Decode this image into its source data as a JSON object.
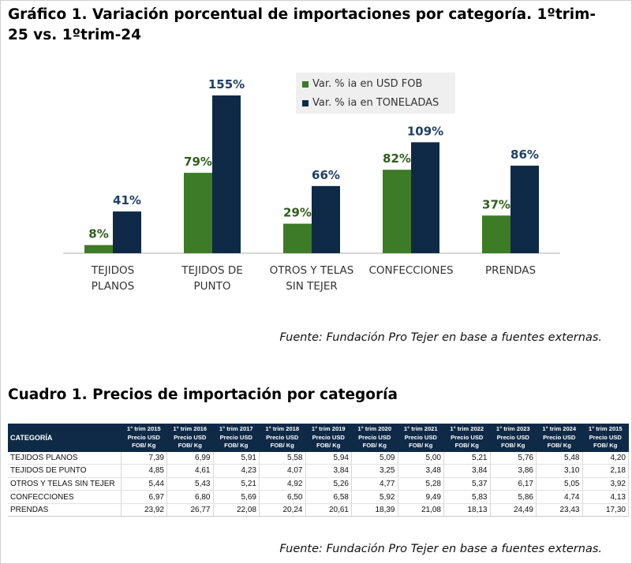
{
  "title": "Gráfico 1. Variación porcentual de importaciones por categoría. 1ºtrim-25 vs. 1ºtrim-24",
  "chart_data": {
    "type": "bar",
    "categories": [
      [
        "TEJIDOS",
        "PLANOS"
      ],
      [
        "TEJIDOS DE",
        "PUNTO"
      ],
      [
        "OTROS Y TELAS",
        "SIN TEJER"
      ],
      [
        "CONFECCIONES"
      ],
      [
        "PRENDAS"
      ]
    ],
    "series": [
      {
        "name": "Var. % ia en USD FOB",
        "values": [
          8,
          79,
          29,
          82,
          37
        ],
        "labels": [
          "8%",
          "79%",
          "29%",
          "82%",
          "37%"
        ],
        "color": "#3d7b26",
        "label_color": "#2f5e1d"
      },
      {
        "name": "Var. % ia en TONELADAS",
        "values": [
          41,
          155,
          66,
          109,
          86
        ],
        "labels": [
          "41%",
          "155%",
          "66%",
          "109%",
          "86%"
        ],
        "color": "#0f2a47",
        "label_color": "#1f3f66"
      }
    ],
    "ylim": [
      0,
      160
    ],
    "grid": false,
    "legend_position": "top-center"
  },
  "source_chart": "Fuente: Fundación Pro Tejer en base a fuentes externas.",
  "table": {
    "title": "Cuadro 1. Precios de importación por categoría",
    "header_category": "CATEGORÍA",
    "columns": [
      [
        "1° trim 2015",
        "Precio USD",
        "FOB/ Kg"
      ],
      [
        "1° trim 2016",
        "Precio USD",
        "FOB/ Kg"
      ],
      [
        "1° trim 2017",
        "Precio USD",
        "FOB/ Kg"
      ],
      [
        "1° trim 2018",
        "Precio USD",
        "FOB/ Kg"
      ],
      [
        "1° trim 2019",
        "Precio USD",
        "FOB/ Kg"
      ],
      [
        "1° trim 2020",
        "Precio USD",
        "FOB/ Kg"
      ],
      [
        "1° trim 2021",
        "Precio USD",
        "FOB/ Kg"
      ],
      [
        "1° trim 2022",
        "Precio USD",
        "FOB/ Kg"
      ],
      [
        "1° trim 2023",
        "Precio USD",
        "FOB/ Kg"
      ],
      [
        "1° trim 2024",
        "Precio USD",
        "FOB/ Kg"
      ],
      [
        "1° trim 2015",
        "Precio USD",
        "FOB/ Kg"
      ]
    ],
    "rows": [
      {
        "category": "TEJIDOS PLANOS",
        "values": [
          "7,39",
          "6,99",
          "5,91",
          "5,58",
          "5,94",
          "5,09",
          "5,00",
          "5,21",
          "5,76",
          "5,48",
          "4,20"
        ]
      },
      {
        "category": "TEJIDOS DE PUNTO",
        "values": [
          "4,85",
          "4,61",
          "4,23",
          "4,07",
          "3,84",
          "3,25",
          "3,48",
          "3,84",
          "3,86",
          "3,10",
          "2,18"
        ]
      },
      {
        "category": "OTROS Y TELAS SIN TEJER",
        "values": [
          "5,44",
          "5,43",
          "5,21",
          "4,92",
          "5,26",
          "4,77",
          "5,28",
          "5,37",
          "6,17",
          "5,05",
          "3,92"
        ]
      },
      {
        "category": "CONFECCIONES",
        "values": [
          "6,97",
          "6,80",
          "5,69",
          "6,50",
          "6,58",
          "5,92",
          "9,49",
          "5,83",
          "5,86",
          "4,74",
          "4,13"
        ]
      },
      {
        "category": "PRENDAS",
        "values": [
          "23,92",
          "26,77",
          "22,08",
          "20,24",
          "20,61",
          "18,39",
          "21,08",
          "18,13",
          "24,49",
          "23,43",
          "17,30"
        ]
      }
    ]
  },
  "source_table": "Fuente: Fundación Pro Tejer en base a fuentes externas."
}
